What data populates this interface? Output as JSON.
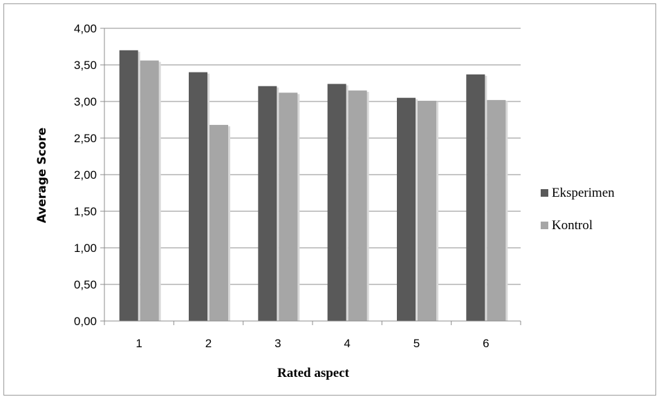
{
  "chart_data": {
    "type": "bar",
    "categories": [
      "1",
      "2",
      "3",
      "4",
      "5",
      "6"
    ],
    "series": [
      {
        "name": "Eksperimen",
        "values": [
          3.7,
          3.4,
          3.21,
          3.24,
          3.05,
          3.37
        ],
        "color": "#595959"
      },
      {
        "name": "Kontrol",
        "values": [
          3.56,
          2.68,
          3.12,
          3.15,
          3.01,
          3.02
        ],
        "color": "#a6a6a6"
      }
    ],
    "y_tick_labels": [
      "0,00",
      "0,50",
      "1,00",
      "1,50",
      "2,00",
      "2,50",
      "3,00",
      "3,50",
      "4,00"
    ],
    "xlabel": "Rated aspect",
    "ylabel": "Average Score",
    "ylim": [
      0,
      4
    ],
    "ystep": 0.5,
    "grid": true,
    "legend_position": "right"
  }
}
